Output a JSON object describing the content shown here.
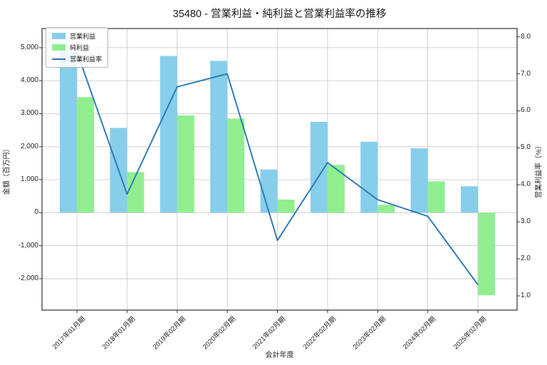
{
  "title": "35480 - 営業利益・純利益と営業利益率の推移",
  "chart_data": {
    "type": "combo_bar_line",
    "title": "35480 - 営業利益・純利益と営業利益率の推移",
    "categories": [
      "2017年01月期",
      "2018年01月期",
      "2019年02月期",
      "2020年02月期",
      "2021年02月期",
      "2022年02月期",
      "2023年02月期",
      "2024年02月期",
      "2025年02月期"
    ],
    "series": [
      {
        "name": "営業利益",
        "type": "bar",
        "axis": "left",
        "color": "#87ceeb",
        "values": [
          4900,
          2570,
          4750,
          4600,
          1310,
          2750,
          2150,
          1950,
          800
        ]
      },
      {
        "name": "純利益",
        "type": "bar",
        "axis": "left",
        "color": "#90ee90",
        "values": [
          3500,
          1230,
          2950,
          2850,
          400,
          1450,
          240,
          950,
          -2500
        ]
      },
      {
        "name": "営業利益率",
        "type": "line",
        "axis": "right",
        "color": "#2878b4",
        "values": [
          7.6,
          3.75,
          6.65,
          7.0,
          2.5,
          4.6,
          3.6,
          3.15,
          1.3
        ]
      }
    ],
    "xlabel": "会計年度",
    "ylabel_left": "金額（百万円）",
    "ylabel_right": "営業利益率（%）",
    "ylim_left": [
      -2950,
      5580
    ],
    "ylim_right": [
      0.615,
      8.225
    ],
    "yticks_left": [
      5000,
      4000,
      3000,
      2000,
      1000,
      0,
      -1000,
      -2000
    ],
    "yticks_right": [
      8.0,
      7.0,
      6.0,
      5.0,
      4.0,
      3.0,
      2.0,
      1.0
    ],
    "grid": true,
    "legend_position": "upper-left"
  },
  "colors": {
    "bar_operating_profit": "#87ceeb",
    "bar_net_profit": "#90ee90",
    "line_margin": "#2878b4",
    "grid": "#cccccc",
    "spine": "#333333",
    "text": "#1a1a1a",
    "background": "#ffffff"
  }
}
